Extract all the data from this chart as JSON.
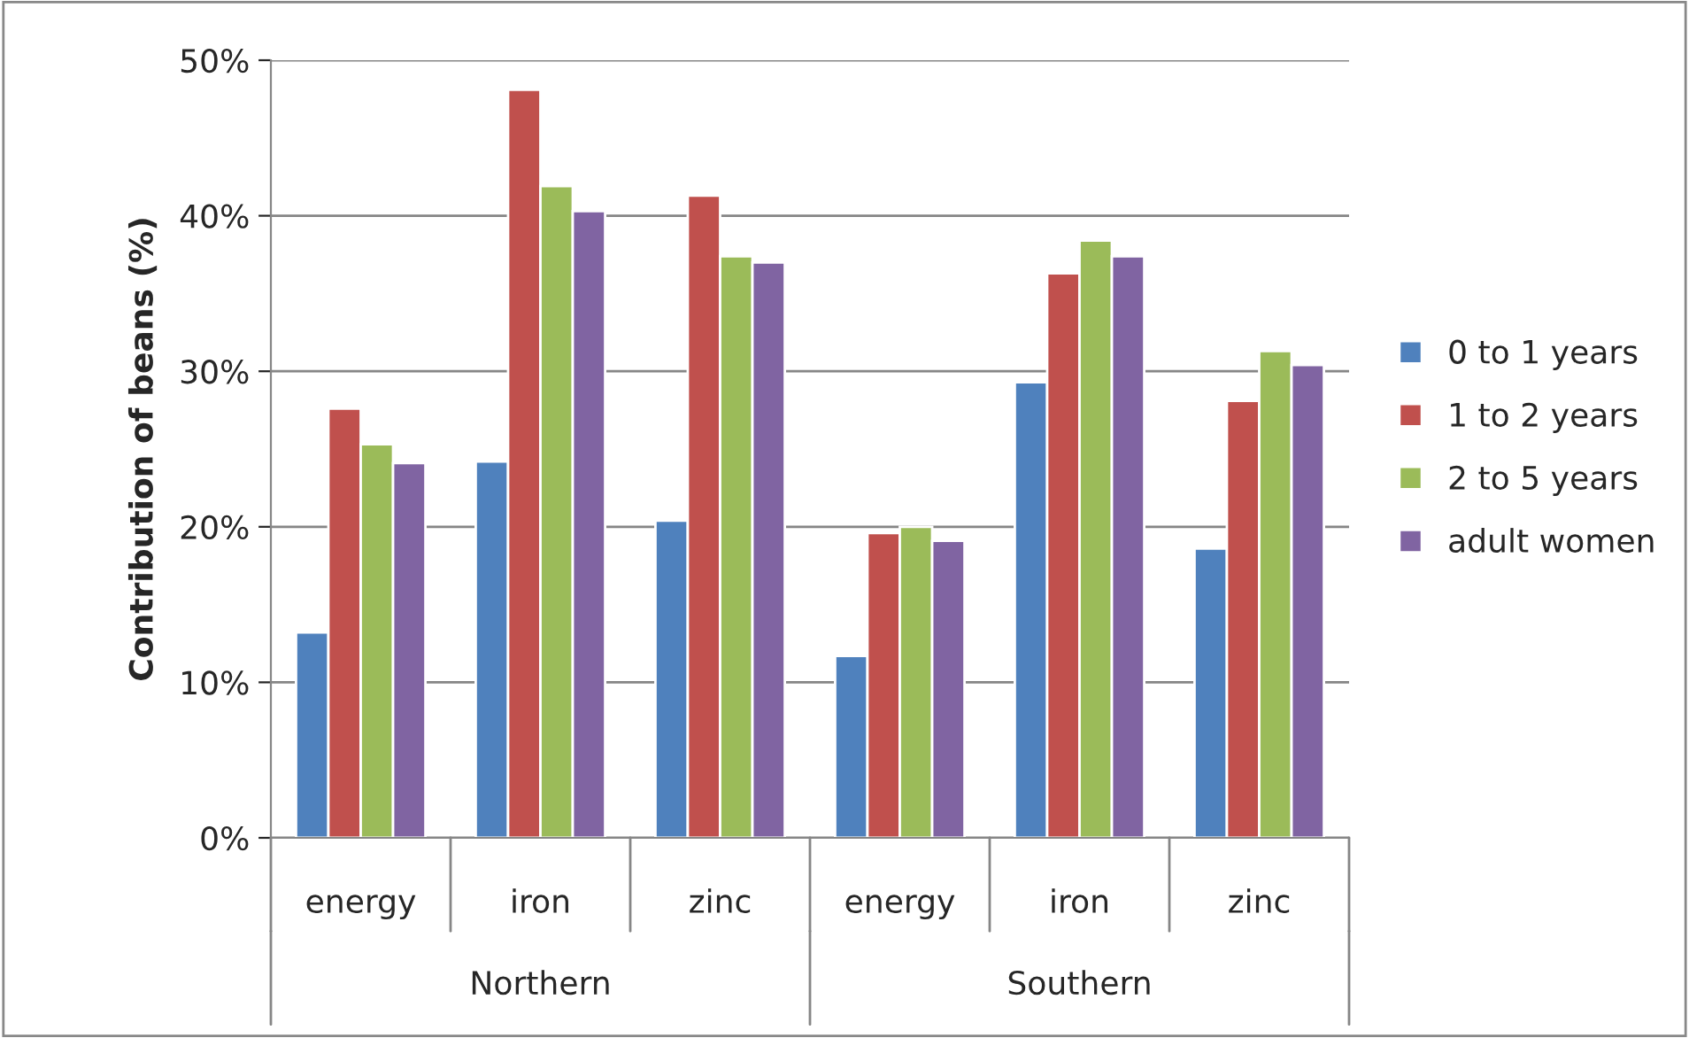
{
  "chart_data": {
    "type": "bar",
    "ylabel": "Contribution of beans (%)",
    "categories": [
      "energy",
      "iron",
      "zinc",
      "energy",
      "iron",
      "zinc"
    ],
    "series": [
      {
        "name": "0 to 1 years",
        "color": "#4f81bd",
        "values": [
          13.2,
          24.2,
          20.4,
          11.7,
          29.3,
          18.6
        ]
      },
      {
        "name": "1 to 2 years",
        "color": "#c0504d",
        "values": [
          27.6,
          48.1,
          41.3,
          19.6,
          36.3,
          28.1
        ]
      },
      {
        "name": "2 to 5 years",
        "color": "#9bbb59",
        "values": [
          25.3,
          41.9,
          37.4,
          20.0,
          38.4,
          31.3
        ]
      },
      {
        "name": "adult women",
        "color": "#8064a2",
        "values": [
          24.1,
          40.3,
          37.0,
          19.1,
          37.4,
          30.4
        ]
      }
    ],
    "ylim": [
      0,
      50
    ],
    "yticks": [
      {
        "value": 0,
        "label": "0%"
      },
      {
        "value": 10,
        "label": "10%"
      },
      {
        "value": 20,
        "label": "20%"
      },
      {
        "value": 30,
        "label": "30%"
      },
      {
        "value": 40,
        "label": "40%"
      },
      {
        "value": 50,
        "label": "50%"
      }
    ],
    "grid": "y",
    "legend": "right",
    "annotations": [
      "Northern",
      "Southern"
    ]
  }
}
